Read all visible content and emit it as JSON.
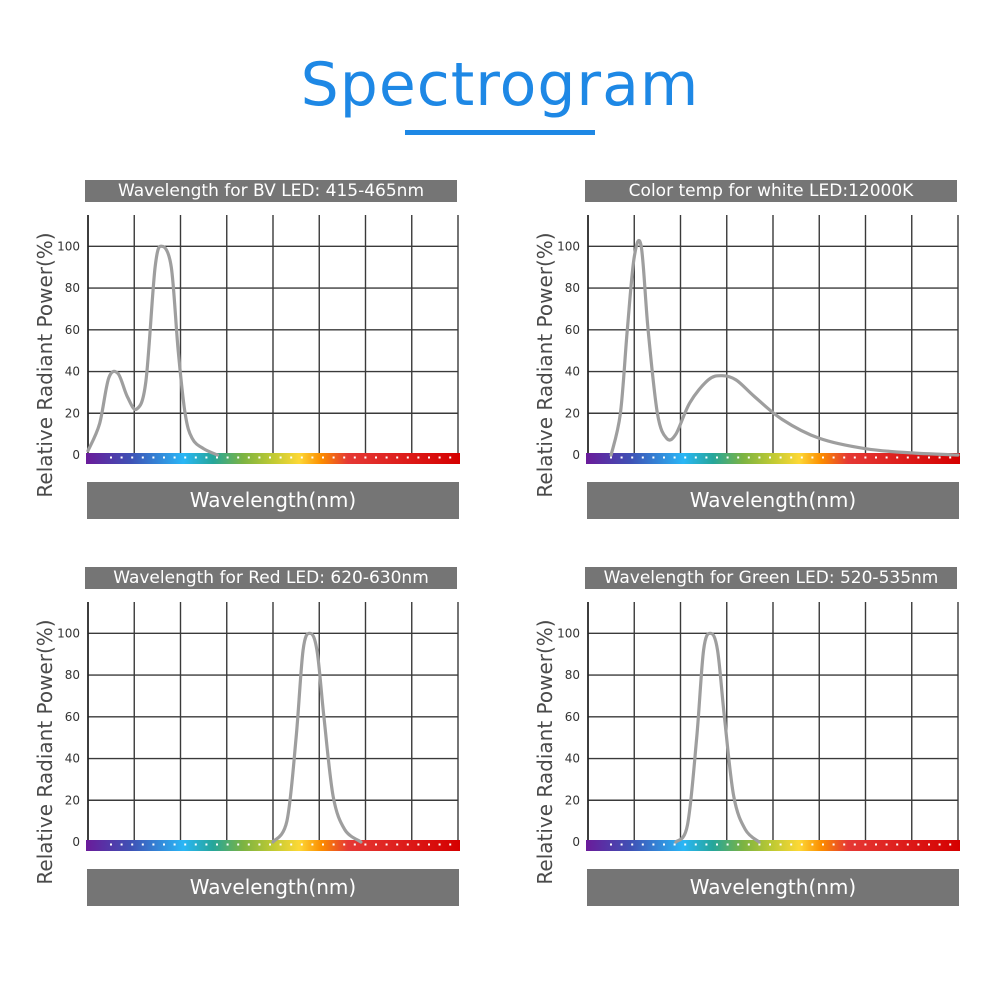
{
  "page": {
    "title": "Spectrogram",
    "accent_color": "#1e88e5"
  },
  "chart_data": [
    {
      "type": "line",
      "title": "Wavelength for BV LED: 415-465nm",
      "xlabel": "Wavelength(nm)",
      "ylabel": "Relative Radiant Power(%)",
      "yticks": [
        0,
        20,
        40,
        60,
        80,
        100
      ],
      "ylim": [
        0,
        115
      ],
      "xlim": [
        0,
        8
      ],
      "curve_color": "#9e9e9e",
      "series": [
        {
          "name": "BV LED",
          "x": [
            0,
            0.25,
            0.45,
            0.65,
            0.85,
            1.05,
            1.25,
            1.45,
            1.6,
            1.8,
            1.95,
            2.1,
            2.25,
            2.5,
            2.8
          ],
          "y": [
            2,
            15,
            37,
            39,
            28,
            22,
            35,
            90,
            100,
            90,
            50,
            20,
            8,
            3,
            0
          ]
        }
      ]
    },
    {
      "type": "line",
      "title": "Color temp for white LED:12000K",
      "xlabel": "Wavelength(nm)",
      "ylabel": "Relative Radiant Power(%)",
      "yticks": [
        0,
        20,
        40,
        60,
        80,
        100
      ],
      "ylim": [
        0,
        115
      ],
      "xlim": [
        0,
        8
      ],
      "curve_color": "#9e9e9e",
      "series": [
        {
          "name": "White LED",
          "x": [
            0.5,
            0.7,
            0.85,
            1.0,
            1.15,
            1.3,
            1.5,
            1.7,
            1.9,
            2.2,
            2.6,
            2.9,
            3.2,
            3.6,
            4.2,
            5.0,
            6.0,
            7.0,
            8.0
          ],
          "y": [
            0,
            20,
            60,
            95,
            100,
            60,
            20,
            8,
            10,
            25,
            36,
            38,
            36,
            28,
            17,
            8,
            3,
            1,
            0
          ]
        }
      ]
    },
    {
      "type": "line",
      "title": "Wavelength for Red  LED:  620-630nm",
      "xlabel": "Wavelength(nm)",
      "ylabel": "Relative Radiant Power(%)",
      "yticks": [
        0,
        20,
        40,
        60,
        80,
        100
      ],
      "ylim": [
        0,
        115
      ],
      "xlim": [
        0,
        8
      ],
      "curve_color": "#9e9e9e",
      "series": [
        {
          "name": "Red LED",
          "x": [
            4.0,
            4.3,
            4.5,
            4.65,
            4.8,
            4.95,
            5.1,
            5.3,
            5.55,
            5.9
          ],
          "y": [
            0,
            10,
            50,
            92,
            100,
            92,
            60,
            22,
            6,
            0
          ]
        }
      ]
    },
    {
      "type": "line",
      "title": "Wavelength for Green LED:  520-535nm",
      "xlabel": "Wavelength(nm)",
      "ylabel": "Relative Radiant Power(%)",
      "yticks": [
        0,
        20,
        40,
        60,
        80,
        100
      ],
      "ylim": [
        0,
        115
      ],
      "xlim": [
        0,
        8
      ],
      "curve_color": "#9e9e9e",
      "series": [
        {
          "name": "Green LED",
          "x": [
            1.9,
            2.15,
            2.35,
            2.5,
            2.65,
            2.8,
            2.95,
            3.15,
            3.4,
            3.7
          ],
          "y": [
            0,
            8,
            50,
            92,
            100,
            92,
            60,
            22,
            6,
            0
          ]
        }
      ]
    }
  ]
}
